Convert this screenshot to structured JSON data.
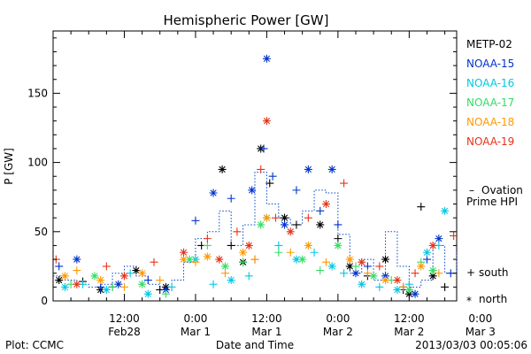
{
  "chart_data": {
    "type": "scatter",
    "title": "Hemispheric Power [GW]",
    "ylabel": "P [GW]",
    "xlabel": "Date and Time",
    "ylim": [
      0,
      195
    ],
    "xlim": [
      0,
      68
    ],
    "x_unit": "hours since 2013-02-28 00:00 UT",
    "y_ticks": [
      0,
      50,
      100,
      150
    ],
    "x_ticks": [
      {
        "x": 12,
        "line1": "12:00",
        "line2": "Feb28"
      },
      {
        "x": 24,
        "line1": "0:00",
        "line2": "Mar 1"
      },
      {
        "x": 36,
        "line1": "12:00",
        "line2": "Mar 1"
      },
      {
        "x": 48,
        "line1": "0:00",
        "line2": "Mar 2"
      },
      {
        "x": 60,
        "line1": "12:00",
        "line2": "Mar 2"
      },
      {
        "x": 72,
        "line1": "0:00",
        "line2": "Mar 3"
      }
    ],
    "series": [
      {
        "name": "METP-02",
        "color": "#000000",
        "x": [
          1,
          5,
          8,
          10,
          14,
          18,
          19,
          25,
          28.5,
          30,
          32,
          34,
          35,
          36.5,
          39,
          41,
          45,
          48,
          50,
          53,
          56,
          59,
          60,
          62,
          64,
          66
        ],
        "y": [
          15,
          14,
          8,
          10,
          22,
          8,
          10,
          40,
          95,
          40,
          28,
          30,
          110,
          85,
          60,
          55,
          55,
          45,
          25,
          18,
          30,
          8,
          5,
          68,
          18,
          10
        ]
      },
      {
        "name": "NOAA-15",
        "color": "#0033cc",
        "x": [
          1,
          4,
          8,
          11,
          16,
          19,
          24,
          27,
          30,
          33.5,
          35.5,
          36,
          37,
          39,
          41,
          43,
          45,
          47,
          48,
          51,
          53,
          56,
          59,
          61,
          63,
          65,
          67
        ],
        "y": [
          25,
          30,
          10,
          12,
          15,
          8,
          58,
          78,
          74,
          80,
          110,
          175,
          90,
          55,
          80,
          95,
          65,
          95,
          55,
          20,
          25,
          18,
          10,
          5,
          30,
          45,
          20
        ]
      },
      {
        "name": "NOAA-16",
        "color": "#00c8e6",
        "x": [
          2,
          5,
          9,
          13,
          16,
          20,
          24,
          27,
          30,
          33,
          36,
          38,
          41,
          44,
          47,
          49,
          52,
          55,
          58,
          60,
          63,
          65,
          66
        ],
        "y": [
          10,
          12,
          8,
          20,
          5,
          10,
          30,
          12,
          15,
          18,
          60,
          40,
          30,
          35,
          25,
          20,
          12,
          10,
          8,
          12,
          35,
          40,
          65
        ]
      },
      {
        "name": "NOAA-17",
        "color": "#33dd66",
        "x": [
          3,
          7,
          10,
          15,
          19,
          23,
          26,
          29,
          32,
          35,
          38,
          42,
          45,
          48,
          51,
          54,
          57,
          60,
          62,
          64
        ],
        "y": [
          12,
          18,
          10,
          12,
          5,
          30,
          40,
          25,
          28,
          55,
          35,
          30,
          22,
          40,
          25,
          18,
          15,
          8,
          28,
          22
        ]
      },
      {
        "name": "NOAA-18",
        "color": "#ff9900",
        "x": [
          2,
          4,
          8,
          12,
          15,
          18,
          22,
          24,
          26,
          29,
          32,
          34,
          36,
          40,
          43,
          46,
          50,
          53,
          56,
          59,
          62,
          65
        ],
        "y": [
          18,
          22,
          15,
          10,
          20,
          15,
          30,
          28,
          32,
          20,
          35,
          30,
          60,
          35,
          40,
          28,
          30,
          20,
          15,
          10,
          25,
          20
        ]
      },
      {
        "name": "NOAA-19",
        "color": "#e6331a",
        "x": [
          0.5,
          4,
          9,
          12,
          17,
          22,
          26,
          28,
          31,
          33,
          35,
          36,
          37.5,
          40,
          43,
          46,
          49,
          52,
          55,
          58,
          61,
          64,
          67.5
        ],
        "y": [
          30,
          12,
          25,
          18,
          28,
          35,
          45,
          30,
          50,
          40,
          95,
          130,
          60,
          50,
          60,
          70,
          85,
          28,
          25,
          15,
          20,
          40,
          47
        ]
      }
    ],
    "ovation": {
      "name": "Ovation Prime HPI",
      "color": "#0044cc",
      "x": [
        0,
        2,
        4,
        6,
        8,
        10,
        12,
        14,
        16,
        18,
        20,
        22,
        24,
        26,
        28,
        30,
        32,
        34,
        36,
        38,
        40,
        42,
        44,
        46,
        48,
        50,
        52,
        54,
        56,
        58,
        60,
        62,
        64,
        66,
        68
      ],
      "y": [
        18,
        15,
        12,
        10,
        12,
        20,
        25,
        18,
        12,
        8,
        15,
        28,
        45,
        50,
        65,
        40,
        55,
        93,
        70,
        60,
        55,
        65,
        80,
        78,
        48,
        20,
        30,
        15,
        50,
        25,
        10,
        15,
        40,
        20,
        35
      ]
    },
    "legend": {
      "placement": "right",
      "entries": [
        {
          "label": "METP-02",
          "color": "#000000"
        },
        {
          "label": "NOAA-15",
          "color": "#0033cc"
        },
        {
          "label": "NOAA-16",
          "color": "#00c8e6"
        },
        {
          "label": "NOAA-17",
          "color": "#33dd66"
        },
        {
          "label": "NOAA-18",
          "color": "#ff9900"
        },
        {
          "label": "NOAA-19",
          "color": "#e6331a"
        }
      ],
      "ovation_line1": "Ovation",
      "ovation_line2": "Prime HPI",
      "ovation_dash": "–",
      "south_label": "south",
      "north_label": "north",
      "south_marker": "+",
      "north_marker": "*"
    },
    "footer": {
      "plot_by": "Plot: CCMC",
      "timestamp": "2013/03/03 00:05:06"
    }
  }
}
